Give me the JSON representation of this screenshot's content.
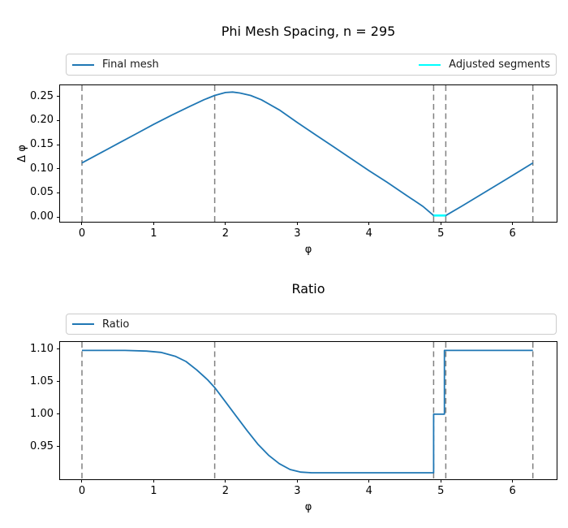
{
  "figure": {
    "background": "#ffffff",
    "text_color": "#000000",
    "spine_color": "#000000",
    "legend_border_color": "#cccccc"
  },
  "chart_data": [
    {
      "type": "line",
      "title": "Phi Mesh Spacing, n = 295",
      "xlabel": "φ",
      "ylabel": "Δ φ",
      "xlim": [
        -0.305,
        6.614
      ],
      "ylim": [
        -0.01,
        0.273
      ],
      "grid": false,
      "legend_position": "above-expanded",
      "xticks": [
        {
          "v": 0,
          "label": "0"
        },
        {
          "v": 1,
          "label": "1"
        },
        {
          "v": 2,
          "label": "2"
        },
        {
          "v": 3,
          "label": "3"
        },
        {
          "v": 4,
          "label": "4"
        },
        {
          "v": 5,
          "label": "5"
        },
        {
          "v": 6,
          "label": "6"
        }
      ],
      "yticks": [
        {
          "v": 0.0,
          "label": "0.00"
        },
        {
          "v": 0.05,
          "label": "0.05"
        },
        {
          "v": 0.1,
          "label": "0.10"
        },
        {
          "v": 0.15,
          "label": "0.15"
        },
        {
          "v": 0.2,
          "label": "0.20"
        },
        {
          "v": 0.25,
          "label": "0.25"
        }
      ],
      "vlines": {
        "xs": [
          0,
          1.85,
          4.9,
          5.07,
          6.283
        ],
        "color": "#808080",
        "style": "dashed",
        "width": 1.5
      },
      "series": [
        {
          "name": "Final mesh",
          "color": "#1f77b4",
          "width": 1.8,
          "points": [
            [
              0,
              0.112
            ],
            [
              0.25,
              0.132
            ],
            [
              0.5,
              0.152
            ],
            [
              0.75,
              0.172
            ],
            [
              1.0,
              0.192
            ],
            [
              1.25,
              0.211
            ],
            [
              1.5,
              0.229
            ],
            [
              1.7,
              0.243
            ],
            [
              1.85,
              0.252
            ],
            [
              2.0,
              0.258
            ],
            [
              2.1,
              0.259
            ],
            [
              2.2,
              0.257
            ],
            [
              2.35,
              0.252
            ],
            [
              2.5,
              0.243
            ],
            [
              2.75,
              0.222
            ],
            [
              3.0,
              0.196
            ],
            [
              3.25,
              0.171
            ],
            [
              3.5,
              0.146
            ],
            [
              3.75,
              0.121
            ],
            [
              4.0,
              0.096
            ],
            [
              4.25,
              0.072
            ],
            [
              4.5,
              0.047
            ],
            [
              4.75,
              0.022
            ],
            [
              4.9,
              0.003
            ],
            [
              5.07,
              0.003
            ],
            [
              5.3,
              0.023
            ],
            [
              5.6,
              0.05
            ],
            [
              5.9,
              0.077
            ],
            [
              6.283,
              0.112
            ]
          ]
        },
        {
          "name": "Adjusted segments",
          "color": "#00ffff",
          "width": 2.6,
          "points": [
            [
              4.9,
              0.003
            ],
            [
              5.07,
              0.003
            ]
          ]
        }
      ]
    },
    {
      "type": "line",
      "title": "Ratio",
      "xlabel": "φ",
      "ylabel": "",
      "xlim": [
        -0.305,
        6.614
      ],
      "ylim": [
        0.9,
        1.111
      ],
      "grid": false,
      "legend_position": "above-expanded",
      "xticks": [
        {
          "v": 0,
          "label": "0"
        },
        {
          "v": 1,
          "label": "1"
        },
        {
          "v": 2,
          "label": "2"
        },
        {
          "v": 3,
          "label": "3"
        },
        {
          "v": 4,
          "label": "4"
        },
        {
          "v": 5,
          "label": "5"
        },
        {
          "v": 6,
          "label": "6"
        }
      ],
      "yticks": [
        {
          "v": 0.95,
          "label": "0.95"
        },
        {
          "v": 1.0,
          "label": "1.00"
        },
        {
          "v": 1.05,
          "label": "1.05"
        },
        {
          "v": 1.1,
          "label": "1.10"
        }
      ],
      "vlines": {
        "xs": [
          0,
          1.85,
          4.9,
          5.07,
          6.283
        ],
        "color": "#808080",
        "style": "dashed",
        "width": 1.5
      },
      "series": [
        {
          "name": "Ratio",
          "color": "#1f77b4",
          "width": 1.8,
          "points": [
            [
              0,
              1.098
            ],
            [
              0.3,
              1.098
            ],
            [
              0.6,
              1.098
            ],
            [
              0.9,
              1.097
            ],
            [
              1.1,
              1.095
            ],
            [
              1.3,
              1.089
            ],
            [
              1.45,
              1.081
            ],
            [
              1.6,
              1.068
            ],
            [
              1.75,
              1.053
            ],
            [
              1.85,
              1.041
            ],
            [
              2.0,
              1.019
            ],
            [
              2.15,
              0.997
            ],
            [
              2.3,
              0.975
            ],
            [
              2.45,
              0.954
            ],
            [
              2.6,
              0.937
            ],
            [
              2.75,
              0.924
            ],
            [
              2.9,
              0.915
            ],
            [
              3.05,
              0.911
            ],
            [
              3.2,
              0.91
            ],
            [
              3.6,
              0.91
            ],
            [
              4.0,
              0.91
            ],
            [
              4.5,
              0.91
            ],
            [
              4.9,
              0.91
            ],
            [
              4.9,
              1.0
            ],
            [
              5.05,
              1.0
            ],
            [
              5.05,
              1.098
            ],
            [
              5.5,
              1.098
            ],
            [
              6.0,
              1.098
            ],
            [
              6.283,
              1.098
            ]
          ]
        }
      ]
    }
  ]
}
